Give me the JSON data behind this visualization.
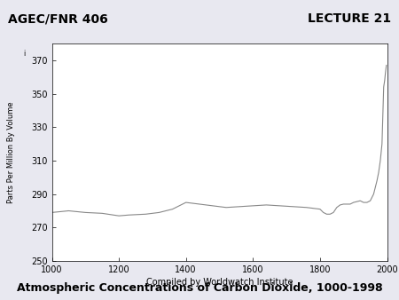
{
  "header_left": "AGEC/FNR 406",
  "header_right": "LECTURE 21",
  "title": "Atmospheric Concentrations of Carbon Dioxide, 1000-1998",
  "xlabel": "Compiled by Worldwatch Institute",
  "ylabel": "Parts Per Million By Volume",
  "xlim": [
    1000,
    2000
  ],
  "ylim": [
    250,
    380
  ],
  "yticks": [
    250,
    270,
    290,
    310,
    330,
    350,
    370
  ],
  "xticks": [
    1000,
    1200,
    1400,
    1600,
    1800,
    2000
  ],
  "header_bg": "#c8c8e8",
  "footer_bg": "#c8c8e8",
  "outer_bg": "#e8e8f0",
  "line_color": "#888888",
  "line_width": 0.8,
  "x_data": [
    1000,
    1050,
    1100,
    1150,
    1200,
    1230,
    1280,
    1320,
    1360,
    1400,
    1440,
    1480,
    1520,
    1560,
    1600,
    1640,
    1680,
    1720,
    1760,
    1800,
    1810,
    1820,
    1830,
    1840,
    1850,
    1860,
    1870,
    1880,
    1890,
    1900,
    1910,
    1920,
    1930,
    1940,
    1950,
    1960,
    1970,
    1975,
    1980,
    1985,
    1990,
    1993,
    1995,
    1998
  ],
  "y_data": [
    279,
    280,
    279,
    278.5,
    277,
    277.5,
    278,
    279,
    281,
    285,
    284,
    283,
    282,
    282.5,
    283,
    283.5,
    283,
    282.5,
    282,
    281,
    279,
    278,
    278,
    279,
    282,
    283.5,
    284,
    284,
    284,
    285,
    285.5,
    286,
    285,
    285,
    286,
    290,
    298,
    303,
    310,
    320,
    354,
    358,
    362,
    367
  ],
  "header_fontsize": 10,
  "title_fontsize": 9,
  "axis_fontsize": 7,
  "ylabel_fontsize": 6
}
